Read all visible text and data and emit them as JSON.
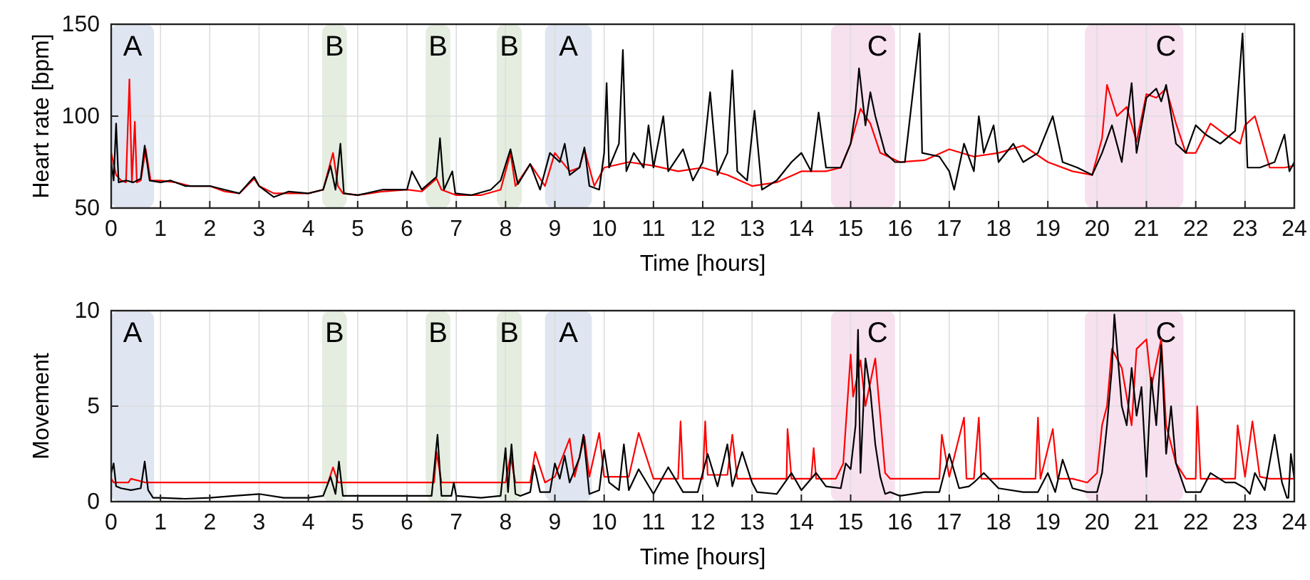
{
  "chart_data": [
    {
      "type": "line",
      "xlabel": "Time [hours]",
      "ylabel": "Heart rate [bpm]",
      "xlim": [
        0,
        24
      ],
      "xticks": [
        0,
        1,
        2,
        3,
        4,
        5,
        6,
        7,
        8,
        9,
        10,
        11,
        12,
        13,
        14,
        15,
        16,
        17,
        18,
        19,
        20,
        21,
        22,
        23,
        24
      ],
      "ylim": [
        50,
        150
      ],
      "yticks": [
        50,
        100,
        150
      ],
      "grid": true,
      "bands": [
        {
          "axis": "x",
          "from": 0,
          "to": 0.87,
          "label": "A",
          "color": "#dfe6f1"
        },
        {
          "axis": "x",
          "from": 4.28,
          "to": 4.78,
          "label": "B",
          "color": "#e4ede0"
        },
        {
          "axis": "x",
          "from": 6.38,
          "to": 6.88,
          "label": "B",
          "color": "#e4ede0"
        },
        {
          "axis": "x",
          "from": 7.82,
          "to": 8.33,
          "label": "B",
          "color": "#e4ede0"
        },
        {
          "axis": "x",
          "from": 8.8,
          "to": 9.75,
          "label": "A",
          "color": "#dfe6f1"
        },
        {
          "axis": "x",
          "from": 14.6,
          "to": 15.9,
          "label": "C",
          "color": "#f7e1ef"
        },
        {
          "axis": "x",
          "from": 19.75,
          "to": 21.75,
          "label": "C",
          "color": "#f7e1ef"
        }
      ],
      "series": [
        {
          "color": "#ff0000",
          "x": [
            0,
            0.1,
            0.2,
            0.3,
            0.37,
            0.42,
            0.48,
            0.52,
            0.6,
            0.7,
            0.8,
            1,
            1.3,
            1.6,
            2,
            2.3,
            2.6,
            2.9,
            3,
            3.3,
            3.7,
            4,
            4.3,
            4.5,
            4.6,
            4.7,
            5,
            5.5,
            6,
            6.3,
            6.6,
            6.7,
            7,
            7.5,
            7.9,
            8.1,
            8.2,
            8.5,
            8.8,
            9,
            9.3,
            9.5,
            9.6,
            9.8,
            10,
            10.5,
            11,
            11.5,
            12,
            12.5,
            13,
            13.5,
            14,
            14.5,
            14.8,
            15,
            15.2,
            15.4,
            15.6,
            16,
            16.5,
            17,
            17.5,
            18,
            18.5,
            19,
            19.5,
            19.9,
            20.1,
            20.2,
            20.4,
            20.6,
            20.8,
            21,
            21.2,
            21.4,
            21.6,
            21.8,
            22,
            22.3,
            22.6,
            22.9,
            23,
            23.2,
            23.5,
            23.8,
            24
          ],
          "values": [
            80,
            68,
            65,
            64,
            120,
            64,
            97,
            64,
            65,
            82,
            65,
            65,
            64,
            62,
            62,
            59,
            58,
            66,
            62,
            58,
            58,
            58,
            60,
            80,
            62,
            58,
            57,
            59,
            60,
            59,
            66,
            60,
            57,
            57,
            60,
            80,
            62,
            74,
            62,
            80,
            70,
            72,
            82,
            62,
            72,
            75,
            73,
            70,
            72,
            68,
            62,
            64,
            70,
            70,
            72,
            85,
            104,
            96,
            80,
            75,
            76,
            82,
            78,
            80,
            84,
            75,
            70,
            68,
            88,
            117,
            100,
            105,
            86,
            112,
            110,
            115,
            96,
            80,
            80,
            96,
            90,
            85,
            95,
            100,
            72,
            72,
            73
          ]
        },
        {
          "color": "#000000",
          "x": [
            0,
            0.05,
            0.1,
            0.15,
            0.3,
            0.45,
            0.6,
            0.68,
            0.78,
            1,
            1.2,
            1.5,
            2,
            2.3,
            2.6,
            2.9,
            3,
            3.3,
            3.6,
            4,
            4.3,
            4.45,
            4.55,
            4.65,
            4.72,
            5,
            5.5,
            6,
            6.1,
            6.3,
            6.6,
            6.67,
            6.75,
            6.92,
            6.98,
            7.3,
            7.7,
            7.9,
            8.1,
            8.25,
            8.5,
            8.7,
            8.9,
            9.1,
            9.2,
            9.3,
            9.5,
            9.6,
            9.7,
            9.9,
            10,
            10.05,
            10.1,
            10.3,
            10.38,
            10.45,
            10.6,
            10.8,
            10.9,
            11,
            11.2,
            11.3,
            11.6,
            11.8,
            12,
            12.15,
            12.3,
            12.5,
            12.6,
            12.7,
            12.9,
            13.05,
            13.2,
            13.5,
            13.8,
            14,
            14.2,
            14.35,
            14.5,
            14.8,
            15,
            15.1,
            15.17,
            15.3,
            15.4,
            15.5,
            15.7,
            15.9,
            16.1,
            16.4,
            16.45,
            16.8,
            17,
            17.1,
            17.3,
            17.5,
            17.6,
            17.7,
            17.9,
            18,
            18.3,
            18.5,
            18.8,
            19.1,
            19.3,
            19.6,
            19.9,
            20.1,
            20.3,
            20.5,
            20.7,
            20.8,
            21,
            21.2,
            21.3,
            21.4,
            21.6,
            21.8,
            22,
            22.2,
            22.5,
            22.8,
            22.95,
            23.05,
            23.3,
            23.6,
            23.8,
            23.9,
            24
          ],
          "values": [
            75,
            65,
            96,
            64,
            65,
            64,
            66,
            84,
            65,
            64,
            65,
            62,
            62,
            60,
            58,
            67,
            62,
            56,
            59,
            58,
            60,
            73,
            60,
            85,
            58,
            57,
            60,
            60,
            70,
            60,
            67,
            88,
            60,
            70,
            58,
            57,
            60,
            65,
            82,
            63,
            74,
            60,
            80,
            75,
            85,
            68,
            72,
            83,
            62,
            60,
            80,
            118,
            72,
            85,
            136,
            70,
            80,
            72,
            95,
            72,
            100,
            70,
            82,
            65,
            75,
            113,
            68,
            80,
            125,
            70,
            65,
            103,
            60,
            65,
            75,
            80,
            70,
            102,
            72,
            72,
            85,
            103,
            126,
            95,
            113,
            100,
            80,
            75,
            75,
            145,
            80,
            78,
            70,
            60,
            85,
            70,
            100,
            80,
            95,
            75,
            85,
            75,
            80,
            100,
            75,
            72,
            68,
            80,
            95,
            75,
            118,
            80,
            110,
            115,
            108,
            117,
            85,
            80,
            95,
            90,
            85,
            92,
            145,
            72,
            72,
            75,
            90,
            70,
            75
          ]
        }
      ]
    },
    {
      "type": "line",
      "xlabel": "Time [hours]",
      "ylabel": "Movement",
      "xlim": [
        0,
        24
      ],
      "xticks": [
        0,
        1,
        2,
        3,
        4,
        5,
        6,
        7,
        8,
        9,
        10,
        11,
        12,
        13,
        14,
        15,
        16,
        17,
        18,
        19,
        20,
        21,
        22,
        23,
        24
      ],
      "ylim": [
        0,
        10
      ],
      "yticks": [
        0,
        5,
        10
      ],
      "grid": true,
      "bands": [
        {
          "axis": "x",
          "from": 0,
          "to": 0.87,
          "label": "A",
          "color": "#dfe6f1"
        },
        {
          "axis": "x",
          "from": 4.28,
          "to": 4.78,
          "label": "B",
          "color": "#e4ede0"
        },
        {
          "axis": "x",
          "from": 6.38,
          "to": 6.88,
          "label": "B",
          "color": "#e4ede0"
        },
        {
          "axis": "x",
          "from": 7.82,
          "to": 8.33,
          "label": "B",
          "color": "#e4ede0"
        },
        {
          "axis": "x",
          "from": 8.8,
          "to": 9.75,
          "label": "A",
          "color": "#dfe6f1"
        },
        {
          "axis": "x",
          "from": 14.6,
          "to": 15.9,
          "label": "C",
          "color": "#f7e1ef"
        },
        {
          "axis": "x",
          "from": 19.75,
          "to": 21.75,
          "label": "C",
          "color": "#f7e1ef"
        }
      ],
      "series": [
        {
          "color": "#ff0000",
          "x": [
            0,
            0.05,
            0.1,
            0.35,
            0.4,
            0.7,
            0.8,
            4.4,
            4.5,
            4.6,
            4.7,
            6.55,
            6.6,
            6.7,
            8,
            8.1,
            8.2,
            8.5,
            8.6,
            8.8,
            9,
            9.3,
            9.4,
            9.6,
            9.7,
            9.9,
            10,
            10.5,
            10.7,
            11,
            11.5,
            11.55,
            11.6,
            12,
            12.05,
            12.1,
            12.5,
            12.6,
            12.7,
            13.7,
            13.72,
            13.8,
            14.2,
            14.25,
            14.3,
            14.7,
            14.85,
            15,
            15.05,
            15.2,
            15.3,
            15.5,
            15.7,
            15.8,
            16,
            16.8,
            16.85,
            17,
            17.3,
            17.35,
            17.5,
            17.6,
            17.65,
            17.8,
            18.75,
            18.8,
            18.85,
            19.1,
            19.2,
            19.5,
            19.8,
            20,
            20.1,
            20.2,
            20.3,
            20.5,
            20.7,
            20.8,
            21,
            21.1,
            21.3,
            21.4,
            21.6,
            21.8,
            22,
            22,
            22.03,
            22.1,
            22.8,
            22.85,
            23,
            23.15,
            23.3,
            23.5,
            24
          ],
          "values": [
            1.2,
            1,
            1,
            1,
            1.2,
            1,
            1,
            1,
            1.8,
            1,
            1,
            1,
            2.6,
            1,
            1,
            2.4,
            1,
            1,
            2.6,
            1,
            1.3,
            3.3,
            1.3,
            3.4,
            1.3,
            3.6,
            1.3,
            1.3,
            3.6,
            1.2,
            1.2,
            4.2,
            1.2,
            1.2,
            4.2,
            1.4,
            1.4,
            3.5,
            1.2,
            1.2,
            3.8,
            1.2,
            1.2,
            2.8,
            1.2,
            1.2,
            2,
            7.7,
            5.5,
            7.4,
            5,
            7.5,
            1.5,
            1.2,
            1.2,
            1.2,
            3.5,
            1.3,
            4.4,
            1.2,
            1.2,
            4.4,
            1.2,
            1.2,
            1.2,
            4.4,
            1.2,
            3.8,
            1.2,
            1.2,
            1,
            1.5,
            4,
            5,
            8,
            7,
            4,
            8,
            8.5,
            6,
            8.5,
            4,
            2,
            1.2,
            1.2,
            1.2,
            5,
            1.2,
            1.2,
            4,
            1.3,
            4.2,
            1.3,
            1.2,
            1.2
          ]
        },
        {
          "color": "#000000",
          "x": [
            0,
            0.05,
            0.1,
            0.2,
            0.4,
            0.6,
            0.68,
            0.75,
            0.85,
            1,
            1.5,
            2,
            2.5,
            3,
            3.5,
            4,
            4.3,
            4.45,
            4.55,
            4.62,
            4.7,
            5,
            5.5,
            6,
            6.5,
            6.62,
            6.7,
            6.9,
            6.95,
            7,
            7.5,
            7.9,
            8,
            8.05,
            8.12,
            8.2,
            8.3,
            8.5,
            8.58,
            8.7,
            8.9,
            9,
            9.1,
            9.2,
            9.3,
            9.5,
            9.58,
            9.7,
            9.9,
            10,
            10.1,
            10.3,
            10.4,
            10.5,
            10.7,
            11,
            11.3,
            11.6,
            11.9,
            12,
            12.1,
            12.3,
            12.5,
            12.6,
            12.8,
            13,
            13.1,
            13.5,
            13.8,
            14,
            14.3,
            14.5,
            14.8,
            14.9,
            15,
            15.1,
            15.15,
            15.2,
            15.3,
            15.4,
            15.5,
            15.6,
            15.7,
            15.8,
            16,
            16.5,
            16.8,
            16.9,
            17,
            17.2,
            17.4,
            17.5,
            17.7,
            18,
            18.5,
            18.8,
            19,
            19.15,
            19.3,
            19.5,
            19.8,
            20,
            20.1,
            20.2,
            20.3,
            20.35,
            20.5,
            20.6,
            20.7,
            20.8,
            20.9,
            21,
            21.1,
            21.2,
            21.3,
            21.4,
            21.5,
            21.6,
            21.8,
            22,
            22.1,
            22.3,
            22.6,
            22.8,
            23,
            23.1,
            23.2,
            23.4,
            23.6,
            23.75,
            23.85,
            23.88,
            23.93,
            24
          ],
          "values": [
            1.5,
            2,
            0.8,
            0.7,
            0.6,
            0.7,
            2.1,
            0.6,
            0.2,
            0.2,
            0.15,
            0.2,
            0.3,
            0.4,
            0.2,
            0.2,
            0.3,
            1.3,
            0.4,
            2.1,
            0.3,
            0.3,
            0.3,
            0.3,
            0.3,
            3.5,
            0.3,
            0.3,
            1,
            0.3,
            0.2,
            0.3,
            2.8,
            0.5,
            3,
            0.4,
            0.3,
            0.5,
            1.9,
            0.5,
            0.5,
            2,
            1.2,
            2.4,
            1,
            2.3,
            3.5,
            0.4,
            0.6,
            2.7,
            1,
            0.6,
            3,
            0.6,
            1.7,
            0.4,
            1.8,
            0.5,
            0.5,
            1.5,
            2.5,
            0.8,
            3,
            0.8,
            2.6,
            1,
            0.5,
            0.4,
            1.5,
            0.6,
            1.5,
            0.8,
            0.7,
            2,
            1.7,
            4,
            9,
            1.5,
            7.5,
            5.8,
            3,
            1.3,
            0.4,
            0.5,
            0.3,
            0.5,
            0.5,
            1.5,
            2.5,
            0.7,
            0.8,
            1,
            1.5,
            0.7,
            0.5,
            0.5,
            1.5,
            0.5,
            2.2,
            0.7,
            0.5,
            0.5,
            1.5,
            4,
            7,
            9.8,
            5,
            4,
            7,
            4.5,
            6,
            1.3,
            6.5,
            4,
            8.2,
            2.5,
            5,
            2,
            0.5,
            0.5,
            0.5,
            1.5,
            1,
            1,
            0.7,
            0.4,
            1.5,
            0.6,
            3.5,
            1,
            0.2,
            0.2,
            2.5,
            1.2
          ]
        }
      ]
    }
  ]
}
